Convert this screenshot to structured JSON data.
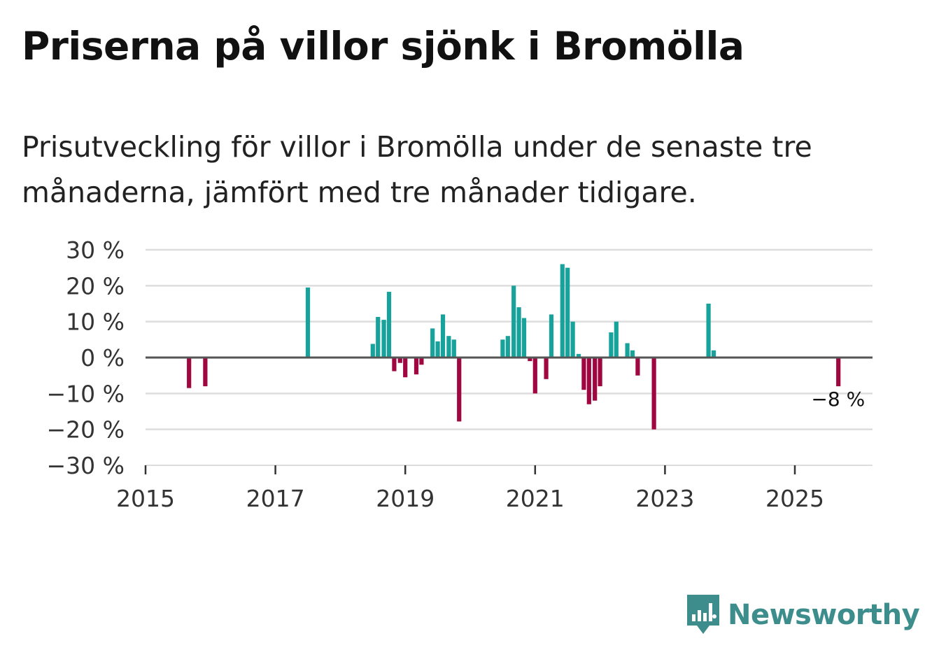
{
  "title": "Priserna på villor sjönk i Bromölla",
  "subtitle": "Prisutveckling för villor i Bromölla under de senaste tre månaderna, jämfört med tre månader tidigare.",
  "brand": {
    "name": "Newsworthy",
    "icon": "newsworthy-logo-icon"
  },
  "colors": {
    "positive": "#17a39b",
    "negative": "#a0063f",
    "grid": "#dddddd",
    "baseline": "#555555",
    "brand": "#3d8d8c"
  },
  "chart_data": {
    "type": "bar",
    "title": "Priserna på villor sjönk i Bromölla",
    "xlabel": "",
    "ylabel": "",
    "ylim": [
      -30,
      30
    ],
    "xlim": [
      2015,
      2026.2
    ],
    "yticks": [
      {
        "value": 30,
        "label": "30 %"
      },
      {
        "value": 20,
        "label": "20 %"
      },
      {
        "value": 10,
        "label": "10 %"
      },
      {
        "value": 0,
        "label": "0 %"
      },
      {
        "value": -10,
        "label": "−10 %"
      },
      {
        "value": -20,
        "label": "−20 %"
      },
      {
        "value": -30,
        "label": "−30 %"
      }
    ],
    "xticks": [
      {
        "value": 2015,
        "label": "2015"
      },
      {
        "value": 2017,
        "label": "2017"
      },
      {
        "value": 2019,
        "label": "2019"
      },
      {
        "value": 2021,
        "label": "2021"
      },
      {
        "value": 2023,
        "label": "2023"
      },
      {
        "value": 2025,
        "label": "2025"
      }
    ],
    "grid": true,
    "series": [
      {
        "name": "Prisutveckling",
        "points": [
          {
            "x": 2015.67,
            "y": -8.5
          },
          {
            "x": 2015.92,
            "y": -8.0
          },
          {
            "x": 2017.5,
            "y": 19.5
          },
          {
            "x": 2018.5,
            "y": 3.8
          },
          {
            "x": 2018.58,
            "y": 11.3
          },
          {
            "x": 2018.67,
            "y": 10.5
          },
          {
            "x": 2018.75,
            "y": 18.3
          },
          {
            "x": 2018.83,
            "y": -3.8
          },
          {
            "x": 2018.92,
            "y": -1.5
          },
          {
            "x": 2019.0,
            "y": -5.5
          },
          {
            "x": 2019.17,
            "y": -4.7
          },
          {
            "x": 2019.25,
            "y": -2.0
          },
          {
            "x": 2019.42,
            "y": 8.1
          },
          {
            "x": 2019.5,
            "y": 4.5
          },
          {
            "x": 2019.58,
            "y": 12.0
          },
          {
            "x": 2019.67,
            "y": 6.0
          },
          {
            "x": 2019.75,
            "y": 5.0
          },
          {
            "x": 2019.83,
            "y": -17.8
          },
          {
            "x": 2020.5,
            "y": 5.0
          },
          {
            "x": 2020.58,
            "y": 6.0
          },
          {
            "x": 2020.67,
            "y": 20.0
          },
          {
            "x": 2020.75,
            "y": 14.0
          },
          {
            "x": 2020.83,
            "y": 11.0
          },
          {
            "x": 2020.92,
            "y": -1.0
          },
          {
            "x": 2021.0,
            "y": -10.0
          },
          {
            "x": 2021.17,
            "y": -6.0
          },
          {
            "x": 2021.25,
            "y": 12.0
          },
          {
            "x": 2021.42,
            "y": 26.0
          },
          {
            "x": 2021.5,
            "y": 25.0
          },
          {
            "x": 2021.58,
            "y": 10.0
          },
          {
            "x": 2021.67,
            "y": 1.0
          },
          {
            "x": 2021.75,
            "y": -9.0
          },
          {
            "x": 2021.83,
            "y": -13.0
          },
          {
            "x": 2021.92,
            "y": -12.0
          },
          {
            "x": 2022.0,
            "y": -8.0
          },
          {
            "x": 2022.17,
            "y": 7.0
          },
          {
            "x": 2022.25,
            "y": 10.0
          },
          {
            "x": 2022.42,
            "y": 4.0
          },
          {
            "x": 2022.5,
            "y": 2.0
          },
          {
            "x": 2022.58,
            "y": -5.0
          },
          {
            "x": 2022.83,
            "y": -20.0
          },
          {
            "x": 2023.67,
            "y": 15.0
          },
          {
            "x": 2023.75,
            "y": 2.0
          },
          {
            "x": 2025.67,
            "y": -8.0
          }
        ]
      }
    ],
    "annotations": [
      {
        "x": 2025.67,
        "y": -8.0,
        "text": "−8 %"
      }
    ]
  }
}
